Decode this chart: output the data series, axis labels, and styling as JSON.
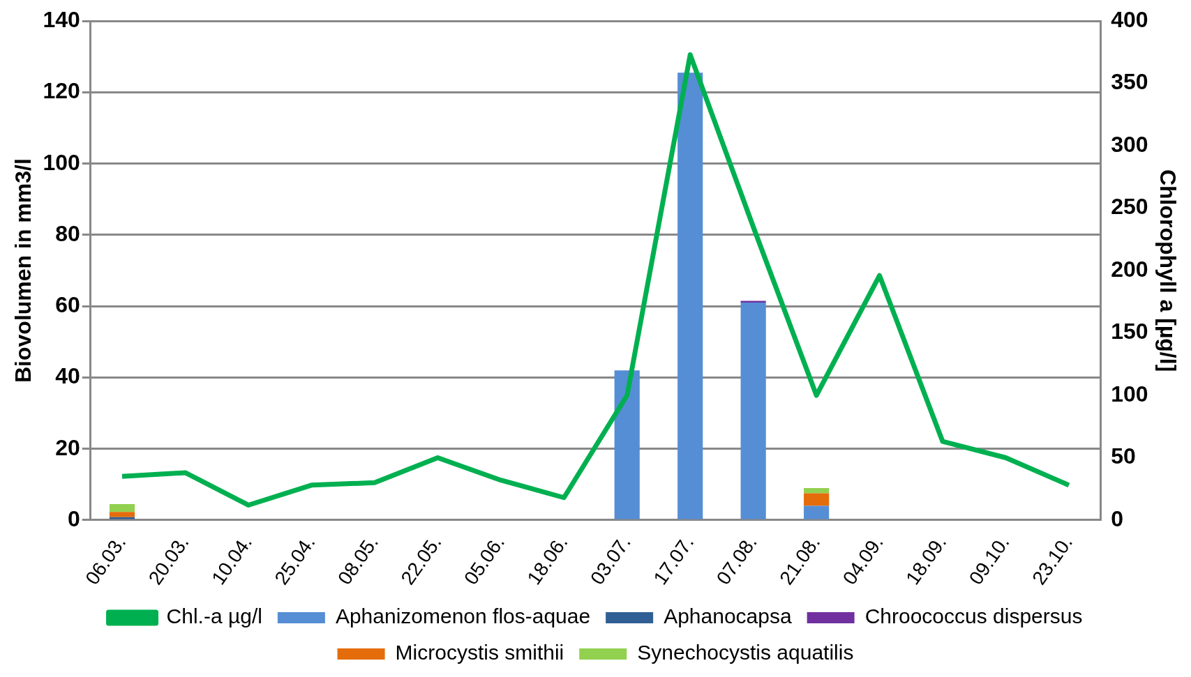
{
  "chart_data": {
    "type": "bar",
    "stacked": true,
    "ylabel": "Biovolumen in mm3/l",
    "y2label": "Chlorophyll a [µg/l]",
    "categories": [
      "06.03.",
      "20.03.",
      "10.04.",
      "25.04.",
      "08.05.",
      "22.05.",
      "05.06.",
      "18.06.",
      "03.07.",
      "17.07.",
      "07.08.",
      "21.08.",
      "04.09.",
      "18.09.",
      "09.10.",
      "23.10."
    ],
    "series": [
      {
        "name": "Aphanizomenon flos-aquae",
        "color": "#558ed5",
        "values": [
          0,
          0,
          0,
          0,
          0,
          0,
          0,
          0,
          42,
          125.5,
          61,
          4,
          0,
          0,
          0,
          0
        ]
      },
      {
        "name": "Aphanocapsa",
        "color": "#2f5f94",
        "values": [
          0.8,
          0,
          0,
          0,
          0,
          0,
          0,
          0,
          0,
          0,
          0,
          0,
          0,
          0,
          0,
          0
        ]
      },
      {
        "name": "Chroococcus dispersus",
        "color": "#7030a0",
        "values": [
          0,
          0,
          0,
          0,
          0,
          0,
          0,
          0,
          0,
          0,
          0.5,
          0,
          0,
          0,
          0,
          0
        ]
      },
      {
        "name": "Microcystis smithii",
        "color": "#e46c0a",
        "values": [
          1.5,
          0,
          0,
          0,
          0,
          0,
          0,
          0,
          0,
          0,
          0,
          3.5,
          0,
          0,
          0,
          0
        ]
      },
      {
        "name": "Synechocystis aquatilis",
        "color": "#92d050",
        "values": [
          2.2,
          0,
          0,
          0,
          0,
          0,
          0,
          0,
          0,
          0,
          0,
          1.5,
          0,
          0,
          0,
          0
        ]
      },
      {
        "name": "Chl.-a µg/l",
        "type": "line",
        "axis": "y2",
        "color": "#00b050",
        "values": [
          35,
          38,
          12,
          28,
          30,
          50,
          32,
          18,
          100,
          373,
          235,
          100,
          196,
          63,
          50,
          28
        ]
      }
    ],
    "ylim": [
      0,
      140
    ],
    "yticks": [
      0,
      20,
      40,
      60,
      80,
      100,
      120,
      140
    ],
    "y2lim": [
      0,
      400
    ],
    "y2ticks": [
      0,
      50,
      100,
      150,
      200,
      250,
      300,
      350,
      400
    ],
    "grid": "y",
    "legend": "bottom",
    "marker": "none"
  }
}
